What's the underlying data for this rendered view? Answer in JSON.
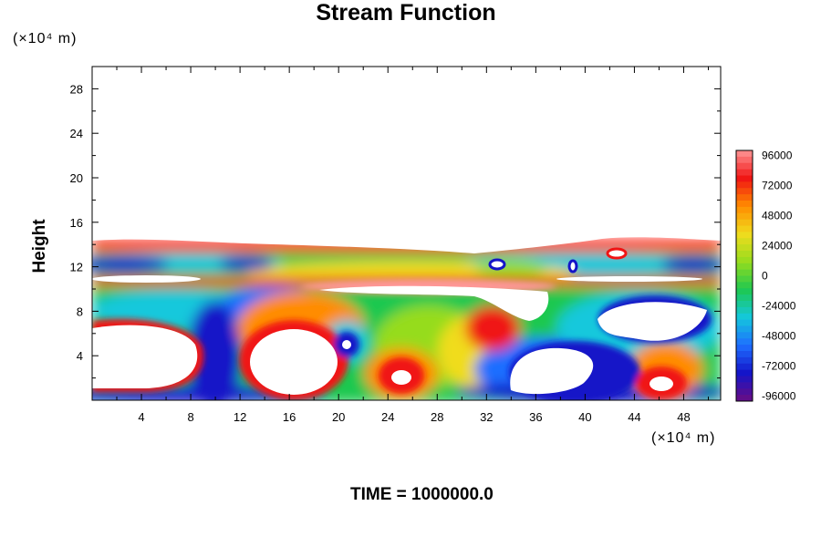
{
  "chart_data": {
    "type": "heatmap",
    "title": "Stream Function",
    "ylabel": "Height",
    "x_unit": "(×10⁴ m)",
    "y_unit": "(×10⁴ m)",
    "footer": "TIME = 1000000.0",
    "xlim": [
      0,
      51
    ],
    "ylim": [
      0,
      30
    ],
    "x_ticks": [
      4,
      8,
      12,
      16,
      20,
      24,
      28,
      32,
      36,
      40,
      44,
      48
    ],
    "y_ticks": [
      4,
      8,
      12,
      16,
      20,
      24,
      28
    ],
    "colorbar": {
      "range": [
        -100000,
        100000
      ],
      "labels": [
        96000,
        72000,
        48000,
        24000,
        0,
        -24000,
        -48000,
        -72000,
        -96000
      ],
      "colors": [
        "#6a0d83",
        "#1414c8",
        "#1e6eff",
        "#14c8dc",
        "#1ec850",
        "#96dc1e",
        "#f0dc1e",
        "#ff8c00",
        "#f01414",
        "#ff9696"
      ]
    },
    "features": [
      {
        "x": 4.5,
        "y": 4.0,
        "type": "positive-core"
      },
      {
        "x": 16.0,
        "y": 3.5,
        "type": "positive-core"
      },
      {
        "x": 20.8,
        "y": 5.2,
        "type": "negative-core"
      },
      {
        "x": 25.5,
        "y": 2.0,
        "type": "positive-core"
      },
      {
        "x": 39.0,
        "y": 3.0,
        "type": "positive-core"
      },
      {
        "x": 47.0,
        "y": 1.5,
        "type": "positive-core"
      }
    ]
  }
}
